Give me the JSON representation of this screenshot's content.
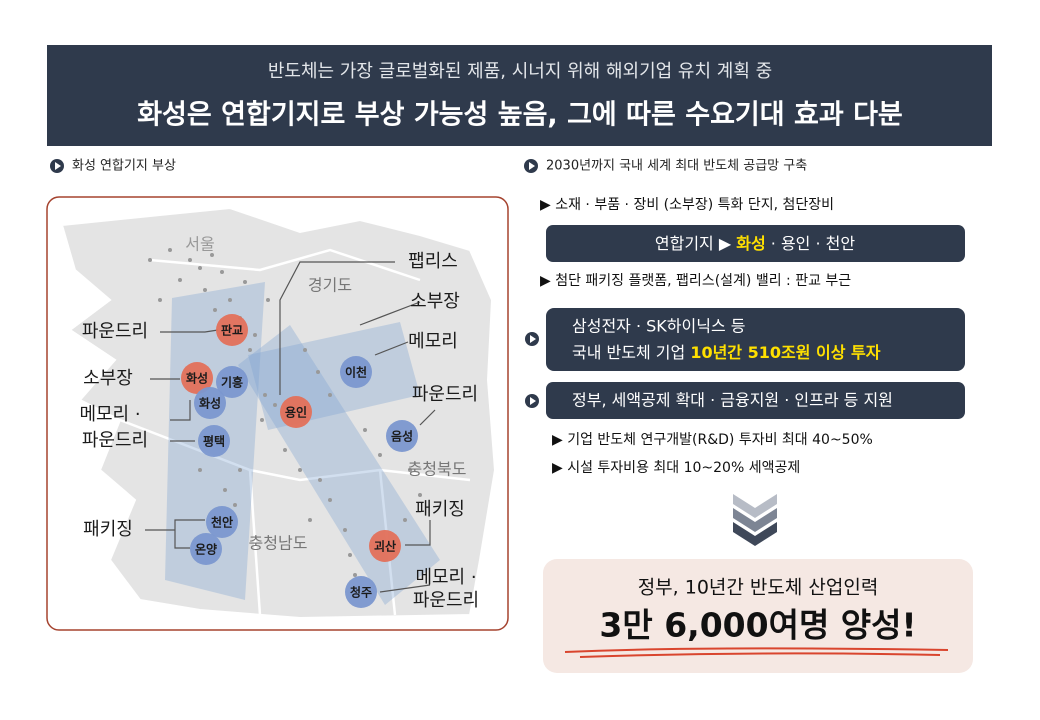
{
  "header": {
    "subtitle": "반도체는 가장 글로벌화된 제품, 시너지 위해 해외기업 유치 계획 중",
    "title": "화성은 연합기지로 부상 가능성 높음, 그에 따른 수요기대 효과 다분"
  },
  "map_panel": {
    "heading": "화성 연합기지 부상",
    "regions": [
      "서울",
      "경기도",
      "충청북도",
      "충청남도"
    ],
    "cities": [
      "판교",
      "화성",
      "기흥",
      "화성",
      "평택",
      "용인",
      "이천",
      "음성",
      "천안",
      "온양",
      "괴산",
      "청주"
    ],
    "callouts": [
      "파운드리",
      "소부장",
      "메모리 ·",
      "파운드리",
      "패키징",
      "팹리스",
      "소부장",
      "메모리",
      "파운드리",
      "패키징",
      "메모리 ·",
      "파운드리"
    ]
  },
  "supply_chain": {
    "heading": "2030년까지 국내 세계 최대 반도체 공급망 구축",
    "note_1": "▶ 소재 · 부품 · 장비 (소부장) 특화 단지, 첨단장비",
    "base_box": {
      "prefix": "연합기지 ▶ ",
      "highlight": "화성",
      "suffix": " · 용인 · 천안"
    },
    "note_2": "▶ 첨단 패키징 플랫폼, 팹리스(설계) 밸리 : 판교 부근",
    "investment_box": {
      "line1": "삼성전자 · SK하이닉스 등",
      "line2_prefix": "국내 반도체 기업 ",
      "line2_highlight": "10년간 510조원 이상 투자"
    },
    "support_box": "정부, 세액공제 확대 · 금융지원 · 인프라 등 지원",
    "support_notes": [
      "▶ 기업 반도체 연구개발(R&D) 투자비 최대 40~50%",
      "▶ 시설 투자비용 최대 10~20% 세액공제"
    ]
  },
  "conclusion": {
    "line1": "정부, 10년간 반도체 산업인력",
    "line2": "3만 6,000여명 양성!"
  }
}
